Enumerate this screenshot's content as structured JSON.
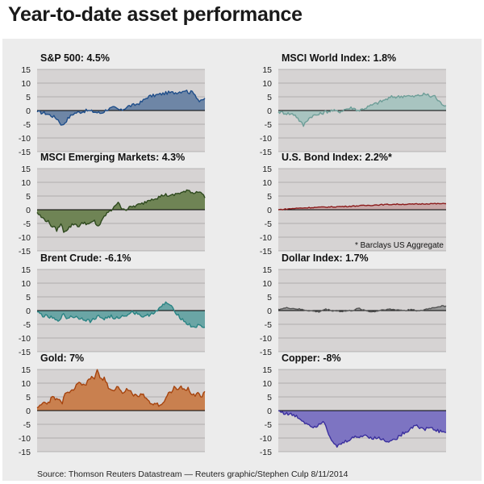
{
  "title": "Year-to-date asset performance",
  "source": "Source: Thomson Reuters Datastream — Reuters graphic/Stephen Culp 8/11/2014",
  "colors": {
    "background": "#ececec",
    "plot_bg": "#d6d3d3",
    "grid": "#8a8a8a",
    "zero_line": "#000000"
  },
  "chart_data": [
    {
      "id": "sp500",
      "type": "area",
      "title": "S&P 500: 4.5%",
      "ylim": [
        -15,
        15
      ],
      "yticks": [
        15,
        10,
        5,
        0,
        -5,
        -10,
        -15
      ],
      "line_color": "#1f4e8a",
      "fill_color": "#6e86a6",
      "keypoints": [
        [
          0,
          -0.5
        ],
        [
          5,
          -1
        ],
        [
          9,
          -2
        ],
        [
          12,
          -3
        ],
        [
          15,
          -5.5
        ],
        [
          17,
          -4
        ],
        [
          19,
          -2.5
        ],
        [
          22,
          -1
        ],
        [
          26,
          -0.5
        ],
        [
          30,
          0
        ],
        [
          34,
          -0.5
        ],
        [
          38,
          -1
        ],
        [
          42,
          0.5
        ],
        [
          46,
          1
        ],
        [
          50,
          0
        ],
        [
          54,
          1.5
        ],
        [
          58,
          2
        ],
        [
          62,
          3
        ],
        [
          66,
          5
        ],
        [
          70,
          5.5
        ],
        [
          74,
          6
        ],
        [
          78,
          6.5
        ],
        [
          82,
          6.5
        ],
        [
          86,
          7
        ],
        [
          88,
          7.5
        ],
        [
          91,
          6.5
        ],
        [
          93,
          7
        ],
        [
          95,
          5
        ],
        [
          97,
          3
        ],
        [
          100,
          4.5
        ]
      ]
    },
    {
      "id": "msci-world",
      "type": "area",
      "title": "MSCI World Index: 1.8%",
      "ylim": [
        -15,
        15
      ],
      "yticks": [
        15,
        10,
        5,
        0,
        -5,
        -10,
        -15
      ],
      "line_color": "#6e9e98",
      "fill_color": "#a8c4c0",
      "keypoints": [
        [
          0,
          -0.5
        ],
        [
          5,
          -1
        ],
        [
          10,
          -1.5
        ],
        [
          13,
          -4
        ],
        [
          15,
          -5.5
        ],
        [
          17,
          -3.5
        ],
        [
          20,
          -2
        ],
        [
          24,
          -1.5
        ],
        [
          28,
          -0.5
        ],
        [
          32,
          0
        ],
        [
          36,
          -0.5
        ],
        [
          40,
          0.5
        ],
        [
          44,
          1
        ],
        [
          48,
          0
        ],
        [
          52,
          1
        ],
        [
          56,
          2
        ],
        [
          60,
          3
        ],
        [
          64,
          4
        ],
        [
          68,
          5
        ],
        [
          72,
          5
        ],
        [
          76,
          5.5
        ],
        [
          80,
          5
        ],
        [
          84,
          5.5
        ],
        [
          88,
          6
        ],
        [
          91,
          5
        ],
        [
          93,
          5.5
        ],
        [
          96,
          3
        ],
        [
          100,
          1.8
        ]
      ]
    },
    {
      "id": "msci-em",
      "type": "area",
      "title": "MSCI Emerging Markets: 4.3%",
      "ylim": [
        -15,
        15
      ],
      "yticks": [
        15,
        10,
        5,
        0,
        -5,
        -10,
        -15
      ],
      "line_color": "#2f4a1f",
      "fill_color": "#6f8455",
      "keypoints": [
        [
          0,
          -1
        ],
        [
          3,
          -3
        ],
        [
          6,
          -4
        ],
        [
          9,
          -6
        ],
        [
          12,
          -7.5
        ],
        [
          14,
          -5
        ],
        [
          16,
          -8
        ],
        [
          19,
          -6.5
        ],
        [
          22,
          -5
        ],
        [
          25,
          -6
        ],
        [
          28,
          -4.5
        ],
        [
          31,
          -5.5
        ],
        [
          34,
          -4
        ],
        [
          36,
          -6
        ],
        [
          38,
          -5
        ],
        [
          40,
          -2.5
        ],
        [
          42,
          -1
        ],
        [
          44,
          -0.5
        ],
        [
          46,
          1.5
        ],
        [
          48,
          2.5
        ],
        [
          50,
          1
        ],
        [
          53,
          0
        ],
        [
          56,
          1
        ],
        [
          59,
          1.5
        ],
        [
          62,
          2
        ],
        [
          65,
          3
        ],
        [
          68,
          4
        ],
        [
          72,
          4.5
        ],
        [
          76,
          5.5
        ],
        [
          80,
          5
        ],
        [
          84,
          6
        ],
        [
          88,
          6.5
        ],
        [
          91,
          7
        ],
        [
          93,
          6
        ],
        [
          95,
          6.5
        ],
        [
          97,
          7
        ],
        [
          100,
          4.3
        ]
      ]
    },
    {
      "id": "us-bond",
      "type": "area",
      "title": "U.S. Bond Index: 2.2%*",
      "ylim": [
        -15,
        15
      ],
      "yticks": [
        15,
        10,
        5,
        0,
        -5,
        -10,
        -15
      ],
      "line_color": "#8b1a1a",
      "fill_color": "#c9a8a8",
      "note": "* Barclays US Aggregate",
      "keypoints": [
        [
          0,
          0
        ],
        [
          10,
          0.5
        ],
        [
          20,
          0.8
        ],
        [
          30,
          1
        ],
        [
          40,
          1.2
        ],
        [
          50,
          1.5
        ],
        [
          60,
          1.8
        ],
        [
          70,
          2
        ],
        [
          80,
          2
        ],
        [
          90,
          2.2
        ],
        [
          100,
          2.2
        ]
      ]
    },
    {
      "id": "brent",
      "type": "area",
      "title": "Brent Crude: -6.1%",
      "ylim": [
        -15,
        15
      ],
      "yticks": [
        15,
        10,
        5,
        0,
        -5,
        -10,
        -15
      ],
      "line_color": "#2a8484",
      "fill_color": "#6aa5a5",
      "keypoints": [
        [
          0,
          -0.5
        ],
        [
          4,
          -2
        ],
        [
          8,
          -2.5
        ],
        [
          10,
          -3
        ],
        [
          12,
          -4
        ],
        [
          14,
          -2.5
        ],
        [
          16,
          -1.5
        ],
        [
          18,
          -3
        ],
        [
          20,
          -2
        ],
        [
          24,
          -2.5
        ],
        [
          28,
          -3
        ],
        [
          32,
          -4
        ],
        [
          36,
          -2
        ],
        [
          40,
          -3
        ],
        [
          44,
          -2
        ],
        [
          46,
          -3.5
        ],
        [
          48,
          -2.5
        ],
        [
          52,
          -2
        ],
        [
          56,
          -0.5
        ],
        [
          60,
          -1
        ],
        [
          64,
          -2.5
        ],
        [
          68,
          -1
        ],
        [
          72,
          0
        ],
        [
          75,
          2
        ],
        [
          77,
          3
        ],
        [
          79,
          2
        ],
        [
          81,
          0.5
        ],
        [
          84,
          -1.5
        ],
        [
          86,
          -3
        ],
        [
          88,
          -4
        ],
        [
          90,
          -5
        ],
        [
          93,
          -6
        ],
        [
          96,
          -5.5
        ],
        [
          100,
          -6.1
        ]
      ]
    },
    {
      "id": "dollar",
      "type": "area",
      "title": "Dollar Index: 1.7%",
      "ylim": [
        -15,
        15
      ],
      "yticks": [
        15,
        10,
        5,
        0,
        -5,
        -10,
        -15
      ],
      "line_color": "#555555",
      "fill_color": "#9a9a9a",
      "keypoints": [
        [
          0,
          0.5
        ],
        [
          6,
          1
        ],
        [
          12,
          0.5
        ],
        [
          18,
          0
        ],
        [
          24,
          -0.5
        ],
        [
          28,
          0.5
        ],
        [
          32,
          0
        ],
        [
          38,
          -0.3
        ],
        [
          44,
          0
        ],
        [
          48,
          0.8
        ],
        [
          52,
          0
        ],
        [
          56,
          -0.5
        ],
        [
          60,
          0
        ],
        [
          64,
          0.5
        ],
        [
          70,
          0.3
        ],
        [
          76,
          0
        ],
        [
          80,
          0.5
        ],
        [
          84,
          -0.3
        ],
        [
          88,
          0.5
        ],
        [
          92,
          1
        ],
        [
          96,
          1.5
        ],
        [
          100,
          1.7
        ]
      ]
    },
    {
      "id": "gold",
      "type": "area",
      "title": "Gold: 7%",
      "ylim": [
        -15,
        15
      ],
      "yticks": [
        15,
        10,
        5,
        0,
        -5,
        -10,
        -15
      ],
      "line_color": "#a6440f",
      "fill_color": "#c9804f",
      "keypoints": [
        [
          0,
          1
        ],
        [
          3,
          3
        ],
        [
          6,
          2
        ],
        [
          9,
          5
        ],
        [
          12,
          4
        ],
        [
          15,
          3
        ],
        [
          17,
          7
        ],
        [
          19,
          6
        ],
        [
          22,
          8
        ],
        [
          25,
          10
        ],
        [
          28,
          9
        ],
        [
          31,
          11
        ],
        [
          33,
          13
        ],
        [
          34,
          11
        ],
        [
          36,
          15
        ],
        [
          38,
          11
        ],
        [
          40,
          12
        ],
        [
          42,
          9
        ],
        [
          45,
          7
        ],
        [
          48,
          9
        ],
        [
          51,
          6
        ],
        [
          54,
          8
        ],
        [
          57,
          6
        ],
        [
          60,
          5
        ],
        [
          63,
          6
        ],
        [
          66,
          4
        ],
        [
          68,
          2
        ],
        [
          70,
          3
        ],
        [
          73,
          2
        ],
        [
          76,
          3.5
        ],
        [
          78,
          6
        ],
        [
          80,
          7
        ],
        [
          82,
          9
        ],
        [
          84,
          7
        ],
        [
          86,
          9
        ],
        [
          88,
          7
        ],
        [
          90,
          8
        ],
        [
          92,
          6
        ],
        [
          94,
          5.5
        ],
        [
          96,
          6.5
        ],
        [
          98,
          5
        ],
        [
          100,
          7
        ]
      ]
    },
    {
      "id": "copper",
      "type": "area",
      "title": "Copper: -8%",
      "ylim": [
        -15,
        15
      ],
      "yticks": [
        15,
        10,
        5,
        0,
        -5,
        -10,
        -15
      ],
      "line_color": "#3a2f9e",
      "fill_color": "#7d74c2",
      "keypoints": [
        [
          0,
          0
        ],
        [
          4,
          -1
        ],
        [
          8,
          -1.5
        ],
        [
          12,
          -2.5
        ],
        [
          15,
          -4
        ],
        [
          18,
          -5
        ],
        [
          22,
          -6
        ],
        [
          25,
          -4.5
        ],
        [
          27,
          -3.5
        ],
        [
          29,
          -6.5
        ],
        [
          31,
          -10
        ],
        [
          33,
          -12.5
        ],
        [
          35,
          -13
        ],
        [
          38,
          -12
        ],
        [
          41,
          -11
        ],
        [
          44,
          -10
        ],
        [
          48,
          -9.5
        ],
        [
          52,
          -9
        ],
        [
          56,
          -10
        ],
        [
          60,
          -10
        ],
        [
          64,
          -11
        ],
        [
          68,
          -11
        ],
        [
          72,
          -9.5
        ],
        [
          75,
          -8
        ],
        [
          78,
          -7
        ],
        [
          80,
          -6
        ],
        [
          82,
          -5
        ],
        [
          85,
          -6.5
        ],
        [
          87,
          -7
        ],
        [
          90,
          -6
        ],
        [
          93,
          -7
        ],
        [
          96,
          -7.5
        ],
        [
          100,
          -8
        ]
      ]
    }
  ]
}
